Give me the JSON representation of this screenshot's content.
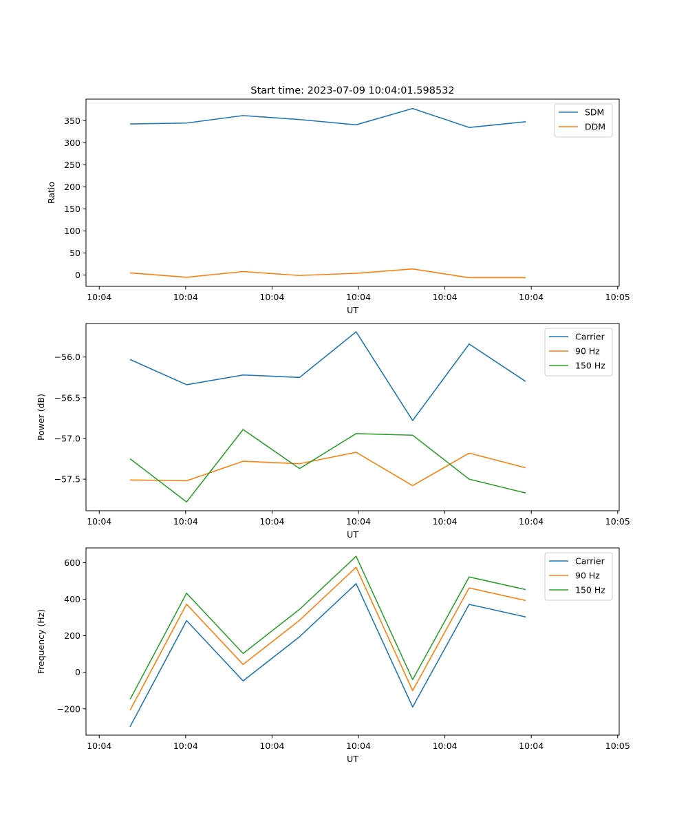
{
  "figure": {
    "title": "Start time: 2023-07-09 10:04:01.598532"
  },
  "colors": {
    "blue": "#1f77b4",
    "orange": "#ff7f0e",
    "green": "#2ca02c"
  },
  "chart_data": [
    {
      "type": "line",
      "title": "Start time: 2023-07-09 10:04:01.598532",
      "xlabel": "UT",
      "ylabel": "Ratio",
      "x": [
        1,
        2,
        3,
        4,
        5,
        6,
        7,
        8
      ],
      "xlim": [
        0.2202,
        9.6552
      ],
      "xticks": [
        0.4545,
        1.9835,
        3.5124,
        5.0413,
        6.5702,
        8.0992,
        9.6281
      ],
      "xtick_labels": [
        "10:04",
        "10:04",
        "10:04",
        "10:04",
        "10:04",
        "10:04",
        "10:05"
      ],
      "ylim": [
        -25.6,
        399.3
      ],
      "yticks": [
        0,
        50,
        100,
        150,
        200,
        250,
        300,
        350
      ],
      "ytick_labels": [
        "0",
        "50",
        "100",
        "150",
        "200",
        "250",
        "300",
        "350"
      ],
      "legend": "top-right",
      "series": [
        {
          "name": "SDM",
          "color": "#1f77b4",
          "values": [
            343,
            345,
            362,
            353,
            341,
            378,
            335,
            348
          ]
        },
        {
          "name": "DDM",
          "color": "#ff7f0e",
          "values": [
            5,
            -5,
            8,
            -1,
            4,
            14,
            -6,
            -6
          ]
        }
      ]
    },
    {
      "type": "line",
      "title": "",
      "xlabel": "UT",
      "ylabel": "Power (dB)",
      "x": [
        1,
        2,
        3,
        4,
        5,
        6,
        7,
        8
      ],
      "xlim": [
        0.2202,
        9.6552
      ],
      "xticks": [
        0.4545,
        1.9835,
        3.5124,
        5.0413,
        6.5702,
        8.0992,
        9.6281
      ],
      "xtick_labels": [
        "10:04",
        "10:04",
        "10:04",
        "10:04",
        "10:04",
        "10:04",
        "10:05"
      ],
      "ylim": [
        -57.888,
        -55.588
      ],
      "yticks": [
        -57.5,
        -57.0,
        -56.5,
        -56.0
      ],
      "ytick_labels": [
        "−57.5",
        "−57.0",
        "−56.5",
        "−56.0"
      ],
      "legend": "top-right",
      "series": [
        {
          "name": "Carrier",
          "color": "#1f77b4",
          "values": [
            -56.03,
            -56.34,
            -56.22,
            -56.25,
            -55.69,
            -56.78,
            -55.84,
            -56.3
          ]
        },
        {
          "name": "90 Hz",
          "color": "#ff7f0e",
          "values": [
            -57.51,
            -57.52,
            -57.28,
            -57.31,
            -57.17,
            -57.58,
            -57.18,
            -57.36
          ]
        },
        {
          "name": "150 Hz",
          "color": "#2ca02c",
          "values": [
            -57.25,
            -57.78,
            -56.89,
            -57.37,
            -56.94,
            -56.96,
            -57.5,
            -57.67
          ]
        }
      ]
    },
    {
      "type": "line",
      "title": "",
      "xlabel": "UT",
      "ylabel": "Frequency (Hz)",
      "x": [
        1,
        2,
        3,
        4,
        5,
        6,
        7,
        8
      ],
      "xlim": [
        0.2202,
        9.6552
      ],
      "xticks": [
        0.4545,
        1.9835,
        3.5124,
        5.0413,
        6.5702,
        8.0992,
        9.6281
      ],
      "xtick_labels": [
        "10:04",
        "10:04",
        "10:04",
        "10:04",
        "10:04",
        "10:04",
        "10:05"
      ],
      "ylim": [
        -344,
        681
      ],
      "yticks": [
        -200,
        0,
        200,
        400,
        600
      ],
      "ytick_labels": [
        "−200",
        "0",
        "200",
        "400",
        "600"
      ],
      "legend": "top-right",
      "series": [
        {
          "name": "Carrier",
          "color": "#1f77b4",
          "values": [
            -298,
            283,
            -47,
            195,
            485,
            -190,
            372,
            303
          ]
        },
        {
          "name": "90 Hz",
          "color": "#ff7f0e",
          "values": [
            -208,
            373,
            43,
            285,
            575,
            -100,
            462,
            393
          ]
        },
        {
          "name": "150 Hz",
          "color": "#2ca02c",
          "values": [
            -148,
            433,
            103,
            345,
            635,
            -40,
            522,
            453
          ]
        }
      ]
    }
  ]
}
